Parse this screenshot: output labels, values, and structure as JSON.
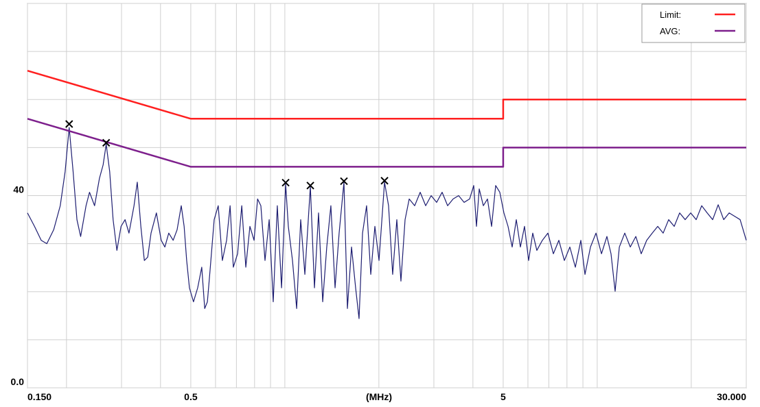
{
  "chart_data": {
    "type": "line",
    "x_label": "(MHz)",
    "xscale": "log",
    "xlim": [
      0.15,
      30
    ],
    "ylim": [
      0,
      80
    ],
    "grid": true,
    "legend": "top-right",
    "xticks": [
      {
        "value": 0.15,
        "label": "0.150"
      },
      {
        "value": 0.2,
        "label": null
      },
      {
        "value": 0.3,
        "label": null
      },
      {
        "value": 0.4,
        "label": null
      },
      0.5,
      {
        "value": 0.6,
        "label": null
      },
      {
        "value": 0.7,
        "label": null
      },
      {
        "value": 0.8,
        "label": null
      },
      {
        "value": 0.9,
        "label": null
      },
      {
        "value": 1,
        "label": null
      },
      {
        "value": 2,
        "label": null
      },
      {
        "value": 3,
        "label": null
      },
      {
        "value": 4,
        "label": null
      },
      5,
      {
        "value": 6,
        "label": null
      },
      {
        "value": 7,
        "label": null
      },
      {
        "value": 8,
        "label": null
      },
      {
        "value": 9,
        "label": null
      },
      {
        "value": 10,
        "label": null
      },
      {
        "value": 20,
        "label": null
      },
      {
        "value": 30,
        "label": "30.000"
      }
    ],
    "yticks": [
      {
        "value": 0,
        "label": "0.0"
      },
      {
        "value": 10,
        "label": null
      },
      {
        "value": 20,
        "label": null
      },
      {
        "value": 30,
        "label": null
      },
      40,
      {
        "value": 50,
        "label": null
      },
      {
        "value": 60,
        "label": null
      },
      {
        "value": 70,
        "label": null
      },
      {
        "value": 80,
        "label": null
      }
    ],
    "series": [
      {
        "name": "Limit:",
        "color": "#ff1f1f",
        "x": [
          0.15,
          0.5,
          5,
          5,
          30
        ],
        "values": [
          66,
          56,
          56,
          60,
          60
        ]
      },
      {
        "name": "AVG:",
        "color": "#7d1f8c",
        "x": [
          0.15,
          0.5,
          5,
          5,
          30
        ],
        "values": [
          56,
          46,
          46,
          50,
          50
        ]
      }
    ],
    "trace": {
      "color": "#1c1c70",
      "x": [
        0.15,
        0.158,
        0.166,
        0.173,
        0.182,
        0.191,
        0.198,
        0.204,
        0.21,
        0.216,
        0.222,
        0.231,
        0.237,
        0.246,
        0.255,
        0.262,
        0.268,
        0.275,
        0.282,
        0.29,
        0.299,
        0.308,
        0.317,
        0.329,
        0.337,
        0.346,
        0.355,
        0.364,
        0.373,
        0.388,
        0.402,
        0.413,
        0.425,
        0.439,
        0.452,
        0.466,
        0.476,
        0.485,
        0.495,
        0.51,
        0.526,
        0.542,
        0.554,
        0.565,
        0.576,
        0.594,
        0.612,
        0.631,
        0.651,
        0.668,
        0.684,
        0.706,
        0.728,
        0.75,
        0.773,
        0.797,
        0.818,
        0.838,
        0.864,
        0.891,
        0.918,
        0.946,
        0.976,
        1.006,
        1.026,
        1.058,
        1.091,
        1.124,
        1.159,
        1.207,
        1.244,
        1.282,
        1.322,
        1.362,
        1.404,
        1.448,
        1.492,
        1.546,
        1.586,
        1.635,
        1.685,
        1.728,
        1.773,
        1.827,
        1.884,
        1.942,
        2.002,
        2.085,
        2.148,
        2.214,
        2.283,
        2.353,
        2.426,
        2.501,
        2.604,
        2.712,
        2.824,
        2.94,
        3.062,
        3.188,
        3.32,
        3.457,
        3.6,
        3.749,
        3.904,
        4.024,
        4.106,
        4.19,
        4.32,
        4.453,
        4.59,
        4.731,
        4.877,
        5.027,
        5.182,
        5.342,
        5.507,
        5.676,
        5.851,
        6.031,
        6.217,
        6.408,
        6.674,
        6.951,
        7.238,
        7.536,
        7.849,
        8.173,
        8.511,
        8.862,
        9.137,
        9.515,
        9.909,
        10.32,
        10.74,
        11.07,
        11.41,
        11.77,
        12.25,
        12.76,
        13.29,
        13.83,
        14.4,
        15.0,
        15.62,
        16.26,
        16.93,
        17.64,
        18.36,
        19.12,
        19.92,
        20.74,
        21.6,
        22.49,
        23.42,
        24.39,
        25.4,
        26.45,
        27.53,
        28.67,
        30.0
      ],
      "values": [
        36.4,
        33.6,
        30.7,
        30.0,
        32.9,
        37.9,
        45.0,
        54.2,
        45.0,
        35.0,
        31.5,
        37.9,
        40.7,
        37.9,
        43.6,
        46.4,
        50.7,
        45.0,
        35.0,
        28.6,
        33.6,
        35.0,
        32.2,
        37.9,
        42.8,
        33.6,
        26.5,
        27.2,
        32.2,
        36.4,
        30.7,
        29.3,
        32.2,
        30.7,
        32.9,
        37.9,
        33.6,
        26.5,
        20.8,
        17.9,
        20.8,
        25.1,
        16.5,
        17.9,
        24.3,
        35.0,
        37.9,
        26.5,
        30.7,
        37.9,
        25.1,
        27.9,
        37.9,
        25.1,
        33.6,
        30.7,
        39.3,
        37.9,
        26.5,
        35.0,
        17.9,
        37.9,
        20.8,
        42.4,
        33.6,
        26.5,
        16.5,
        35.0,
        23.6,
        41.9,
        20.8,
        36.4,
        17.9,
        29.3,
        37.9,
        20.8,
        32.2,
        42.8,
        16.5,
        29.3,
        20.8,
        14.4,
        32.2,
        37.9,
        23.6,
        33.6,
        26.5,
        42.8,
        37.9,
        23.6,
        35.0,
        22.2,
        35.0,
        39.3,
        37.9,
        40.7,
        37.9,
        40.0,
        38.6,
        40.7,
        37.9,
        39.3,
        40.0,
        38.6,
        39.3,
        42.1,
        33.6,
        41.4,
        37.9,
        39.3,
        33.6,
        42.1,
        40.7,
        36.4,
        33.6,
        29.3,
        35.0,
        29.3,
        33.6,
        26.5,
        32.2,
        28.6,
        30.7,
        32.2,
        27.9,
        30.7,
        26.5,
        29.3,
        25.1,
        30.7,
        23.6,
        29.3,
        32.2,
        27.9,
        31.5,
        27.9,
        20.1,
        29.3,
        32.2,
        29.3,
        31.5,
        27.9,
        30.7,
        32.2,
        33.6,
        32.2,
        35.0,
        33.6,
        36.4,
        35.0,
        36.4,
        35.0,
        37.9,
        36.4,
        35.0,
        38.1,
        35.0,
        36.4,
        35.7,
        35.0,
        30.7
      ]
    },
    "markers": {
      "x": [
        0.204,
        0.268,
        1.006,
        1.207,
        1.546,
        2.085
      ],
      "values": [
        54.9,
        51.0,
        42.7,
        42.1,
        43.0,
        43.1
      ]
    }
  }
}
